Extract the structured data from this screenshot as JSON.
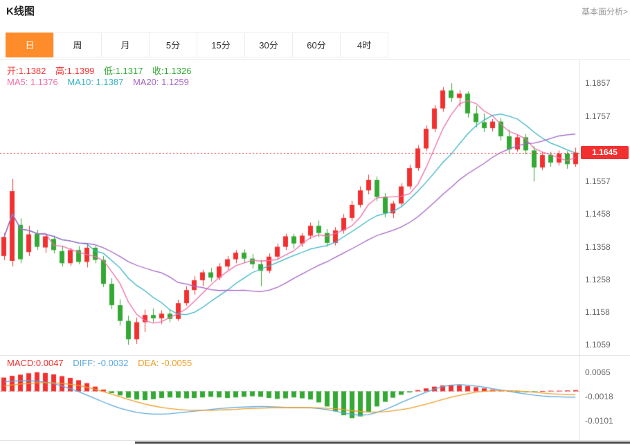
{
  "header": {
    "title": "K线图",
    "link": "基本面分析>"
  },
  "tabs": [
    {
      "label": "日",
      "active": true
    },
    {
      "label": "周",
      "active": false
    },
    {
      "label": "月",
      "active": false
    },
    {
      "label": "5分",
      "active": false
    },
    {
      "label": "15分",
      "active": false
    },
    {
      "label": "30分",
      "active": false
    },
    {
      "label": "60分",
      "active": false
    },
    {
      "label": "4时",
      "active": false
    }
  ],
  "legend": {
    "open_label": "开:",
    "open_value": "1.1382",
    "high_label": "高:",
    "high_value": "1.1399",
    "low_label": "低:",
    "low_value": "1.1317",
    "close_label": "收:",
    "close_value": "1.1326",
    "ma5_label": "MA5: ",
    "ma5_value": "1.1376",
    "ma10_label": "MA10: ",
    "ma10_value": "1.1387",
    "ma20_label": "MA20: ",
    "ma20_value": "1.1259"
  },
  "macd_legend": {
    "macd_label": "MACD:",
    "macd_value": "0.0047",
    "diff_label": "DIFF: ",
    "diff_value": "-0.0032",
    "dea_label": "DEA: ",
    "dea_value": "-0.0055"
  },
  "price_axis": {
    "current": "1.1645"
  },
  "colors": {
    "up": "#f23030",
    "down": "#33a933",
    "ma5": "#f06eaa",
    "ma10": "#39b3c6",
    "ma20": "#a565c8",
    "diff": "#5aa7e0",
    "dea": "#ef9d28",
    "accent_tab": "#ff8c2a",
    "badge_bg": "#f23030",
    "axis_text": "#666666"
  },
  "chart_data": [
    {
      "type": "candlestick",
      "title": "K线图",
      "timeframe": "日",
      "ylim": [
        1.103,
        1.1925
      ],
      "y_axis_ticks": [
        1.1857,
        1.1757,
        1.1557,
        1.1458,
        1.1358,
        1.1258,
        1.1158,
        1.1059
      ],
      "current_price": 1.1645,
      "ohlc_legend": {
        "open": 1.1382,
        "high": 1.1399,
        "low": 1.1317,
        "close": 1.1326
      },
      "ma_legend": {
        "ma5": 1.1376,
        "ma10": 1.1387,
        "ma20": 1.1259
      },
      "ma_periods": [
        5,
        10,
        20
      ],
      "candles": [
        [
          1.133,
          1.14,
          1.1317,
          1.1388
        ],
        [
          1.1315,
          1.1565,
          1.1298,
          1.1528
        ],
        [
          1.1425,
          1.1445,
          1.1308,
          1.132
        ],
        [
          1.1342,
          1.1422,
          1.133,
          1.1396
        ],
        [
          1.1398,
          1.141,
          1.1348,
          1.1358
        ],
        [
          1.1356,
          1.1398,
          1.134,
          1.139
        ],
        [
          1.1382,
          1.1392,
          1.1338,
          1.1348
        ],
        [
          1.1345,
          1.136,
          1.1298,
          1.1308
        ],
        [
          1.1308,
          1.1355,
          1.13,
          1.1348
        ],
        [
          1.1348,
          1.136,
          1.1305,
          1.1312
        ],
        [
          1.1312,
          1.1368,
          1.1295,
          1.1355
        ],
        [
          1.1355,
          1.1362,
          1.1308,
          1.1318
        ],
        [
          1.1318,
          1.133,
          1.1235,
          1.1245
        ],
        [
          1.1245,
          1.1262,
          1.1168,
          1.118
        ],
        [
          1.118,
          1.1198,
          1.1118,
          1.1132
        ],
        [
          1.1132,
          1.1148,
          1.1059,
          1.1076
        ],
        [
          1.1076,
          1.1142,
          1.1062,
          1.1128
        ],
        [
          1.1128,
          1.1166,
          1.1098,
          1.115
        ],
        [
          1.115,
          1.117,
          1.1128,
          1.114
        ],
        [
          1.114,
          1.1164,
          1.1122,
          1.1154
        ],
        [
          1.1154,
          1.1166,
          1.1128,
          1.1138
        ],
        [
          1.1138,
          1.1196,
          1.1132,
          1.1186
        ],
        [
          1.1186,
          1.1238,
          1.1178,
          1.1226
        ],
        [
          1.1226,
          1.1268,
          1.1212,
          1.1256
        ],
        [
          1.1256,
          1.1288,
          1.1238,
          1.128
        ],
        [
          1.128,
          1.1294,
          1.1252,
          1.1264
        ],
        [
          1.1264,
          1.1308,
          1.1256,
          1.1298
        ],
        [
          1.1298,
          1.133,
          1.1288,
          1.132
        ],
        [
          1.132,
          1.1348,
          1.1308,
          1.134
        ],
        [
          1.134,
          1.135,
          1.1308,
          1.1322
        ],
        [
          1.1322,
          1.1336,
          1.1292,
          1.1305
        ],
        [
          1.1305,
          1.1318,
          1.1238,
          1.1285
        ],
        [
          1.1285,
          1.1338,
          1.1278,
          1.1328
        ],
        [
          1.1328,
          1.1368,
          1.1318,
          1.1358
        ],
        [
          1.1358,
          1.1398,
          1.1348,
          1.139
        ],
        [
          1.139,
          1.1398,
          1.1352,
          1.1368
        ],
        [
          1.1368,
          1.14,
          1.1358,
          1.1392
        ],
        [
          1.1392,
          1.1432,
          1.1382,
          1.1422
        ],
        [
          1.1422,
          1.1438,
          1.1388,
          1.14
        ],
        [
          1.14,
          1.1412,
          1.1358,
          1.137
        ],
        [
          1.137,
          1.1418,
          1.1362,
          1.1408
        ],
        [
          1.1408,
          1.1458,
          1.1398,
          1.1446
        ],
        [
          1.1446,
          1.1498,
          1.1436,
          1.1486
        ],
        [
          1.1486,
          1.1542,
          1.1478,
          1.153
        ],
        [
          1.153,
          1.1578,
          1.1518,
          1.1562
        ],
        [
          1.1562,
          1.1572,
          1.1498,
          1.151
        ],
        [
          1.151,
          1.1522,
          1.1448,
          1.146
        ],
        [
          1.146,
          1.1498,
          1.1446,
          1.149
        ],
        [
          1.149,
          1.1552,
          1.1482,
          1.1542
        ],
        [
          1.1542,
          1.1608,
          1.1534,
          1.1598
        ],
        [
          1.1598,
          1.1668,
          1.159,
          1.1658
        ],
        [
          1.1658,
          1.1728,
          1.165,
          1.1718
        ],
        [
          1.1718,
          1.179,
          1.1708,
          1.178
        ],
        [
          1.178,
          1.1845,
          1.177,
          1.1835
        ],
        [
          1.1835,
          1.1857,
          1.18,
          1.1812
        ],
        [
          1.1812,
          1.1836,
          1.1785,
          1.1825
        ],
        [
          1.1825,
          1.1832,
          1.1752,
          1.1765
        ],
        [
          1.1765,
          1.1788,
          1.1722,
          1.1738
        ],
        [
          1.1738,
          1.1765,
          1.1708,
          1.172
        ],
        [
          1.172,
          1.1748,
          1.171,
          1.174
        ],
        [
          1.174,
          1.175,
          1.1682,
          1.1695
        ],
        [
          1.1695,
          1.1715,
          1.1642,
          1.1655
        ],
        [
          1.1655,
          1.17,
          1.1648,
          1.1692
        ],
        [
          1.1692,
          1.1702,
          1.164,
          1.1652
        ],
        [
          1.1652,
          1.1665,
          1.1557,
          1.16
        ],
        [
          1.16,
          1.1648,
          1.1592,
          1.1638
        ],
        [
          1.1638,
          1.1648,
          1.1602,
          1.1615
        ],
        [
          1.1615,
          1.1652,
          1.1606,
          1.1642
        ],
        [
          1.1642,
          1.165,
          1.1596,
          1.161
        ],
        [
          1.161,
          1.166,
          1.1602,
          1.1645
        ]
      ]
    },
    {
      "type": "macd",
      "y_axis_ticks": [
        0.0065,
        -0.0018,
        -0.0101
      ],
      "legend": {
        "macd": 0.0047,
        "diff": -0.0032,
        "dea": -0.0055
      },
      "histogram": [
        0.0047,
        0.0053,
        0.0057,
        0.0062,
        0.0065,
        0.0063,
        0.0058,
        0.0052,
        0.0046,
        0.0038,
        0.0028,
        0.0016,
        0.0006,
        -0.0006,
        -0.0014,
        -0.0022,
        -0.0028,
        -0.003,
        -0.0027,
        -0.0023,
        -0.0021,
        -0.0022,
        -0.0024,
        -0.0023,
        -0.0021,
        -0.0019,
        -0.0021,
        -0.0023,
        -0.0021,
        -0.0019,
        -0.0017,
        -0.0019,
        -0.0023,
        -0.0026,
        -0.0024,
        -0.0021,
        -0.0024,
        -0.0028,
        -0.0038,
        -0.0052,
        -0.0068,
        -0.0082,
        -0.0092,
        -0.0086,
        -0.007,
        -0.0052,
        -0.0036,
        -0.0022,
        -0.0012,
        -0.0004,
        0.0004,
        0.001,
        0.0016,
        0.002,
        0.0022,
        0.0021,
        0.0018,
        0.0014,
        0.001,
        0.0006,
        0.0003,
        0.0001,
        -0.0002,
        -0.0003,
        -0.0002,
        0.0001,
        0.0002,
        0.0002,
        0.0003,
        0.0004
      ],
      "diff": [
        0.0032,
        0.0035,
        0.0036,
        0.0036,
        0.0035,
        0.0031,
        0.0026,
        0.0018,
        0.0009,
        -0.0001,
        -0.0013,
        -0.0025,
        -0.0037,
        -0.0048,
        -0.0058,
        -0.0066,
        -0.0072,
        -0.0076,
        -0.0078,
        -0.0078,
        -0.0077,
        -0.0074,
        -0.0071,
        -0.0068,
        -0.0065,
        -0.0062,
        -0.0059,
        -0.0057,
        -0.0055,
        -0.0054,
        -0.0053,
        -0.0052,
        -0.0053,
        -0.0054,
        -0.0055,
        -0.0055,
        -0.0056,
        -0.0057,
        -0.0059,
        -0.0063,
        -0.0068,
        -0.0074,
        -0.0079,
        -0.0082,
        -0.008,
        -0.0073,
        -0.0063,
        -0.0051,
        -0.0038,
        -0.0026,
        -0.0014,
        -0.0003,
        0.0008,
        0.0016,
        0.0021,
        0.0023,
        0.0021,
        0.0018,
        0.0014,
        0.0009,
        0.0005,
        0.0,
        -0.0005,
        -0.0009,
        -0.0013,
        -0.0016,
        -0.0018,
        -0.0019,
        -0.002,
        -0.002
      ],
      "dea": [
        0.0018,
        0.0022,
        0.0025,
        0.0027,
        0.0029,
        0.0029,
        0.0029,
        0.0027,
        0.0024,
        0.002,
        0.0014,
        0.0007,
        -0.0001,
        -0.001,
        -0.0019,
        -0.0028,
        -0.0036,
        -0.0044,
        -0.005,
        -0.0055,
        -0.0059,
        -0.0062,
        -0.0064,
        -0.0065,
        -0.0065,
        -0.0065,
        -0.0064,
        -0.0063,
        -0.0062,
        -0.006,
        -0.0059,
        -0.0058,
        -0.0057,
        -0.0056,
        -0.0056,
        -0.0056,
        -0.0056,
        -0.0056,
        -0.0057,
        -0.0058,
        -0.006,
        -0.0063,
        -0.0066,
        -0.0069,
        -0.0071,
        -0.0071,
        -0.007,
        -0.0067,
        -0.0063,
        -0.0058,
        -0.0051,
        -0.0044,
        -0.0036,
        -0.0028,
        -0.002,
        -0.0014,
        -0.0008,
        -0.0003,
        0.0,
        0.0002,
        0.0003,
        0.0002,
        0.0001,
        -0.0001,
        -0.0003,
        -0.0006,
        -0.0008,
        -0.001,
        -0.0011,
        -0.0012
      ]
    }
  ]
}
